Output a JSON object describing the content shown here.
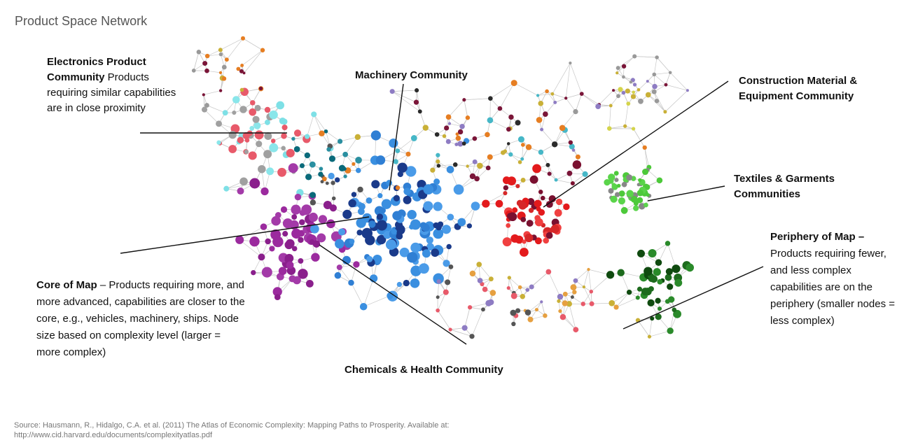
{
  "title": "Product Space Network",
  "annotations": [
    {
      "bold": "Electronics Product Community",
      "text": " Products requiring similar capabilities are in close proximity"
    },
    {
      "bold": "Machinery Community"
    },
    {
      "bold": "Construction Material & Equipment Community"
    },
    {
      "bold": "Textiles & Garments Communities"
    },
    {
      "bold": "Periphery of Map –",
      "text": " Products requiring fewer, and less complex capabilities are on the periphery (smaller nodes = less complex)"
    },
    {
      "bold": "Core of Map",
      "text": " – Products requiring more, and more advanced, capabilities are closer to the core, e.g., vehicles, machinery, ships. Node size based on complexity level (larger = more complex)"
    },
    {
      "bold": "Chemicals & Health Community"
    }
  ],
  "source": "Source:  Hausmann, R., Hidalgo, C.A. et al. (2011) The Atlas of Economic Complexity: Mapping Paths to Prosperity. Available at: http://www.cid.harvard.edu/documents/complexityatlas.pdf"
}
